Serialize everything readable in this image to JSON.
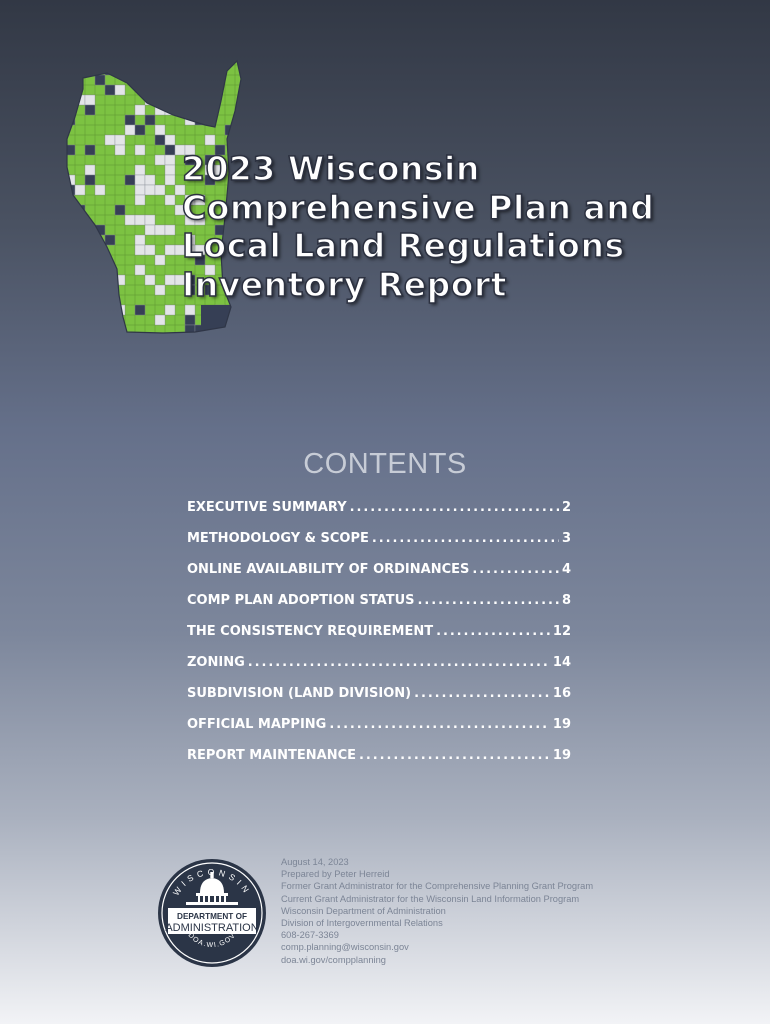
{
  "title_lines": [
    "2023 Wisconsin",
    "Comprehensive Plan and",
    "Local Land Regulations",
    "Inventory Report"
  ],
  "contents_heading": "CONTENTS",
  "toc": [
    {
      "label": "EXECUTIVE SUMMARY",
      "page": "2"
    },
    {
      "label": "METHODOLOGY & SCOPE",
      "page": "3"
    },
    {
      "label": "ONLINE AVAILABILITY OF ORDINANCES",
      "page": "4"
    },
    {
      "label": "COMP PLAN ADOPTION STATUS",
      "page": "8"
    },
    {
      "label": "THE CONSISTENCY REQUIREMENT",
      "page": "12"
    },
    {
      "label": "ZONING",
      "page": "14"
    },
    {
      "label": "SUBDIVISION (LAND DIVISION)",
      "page": "16"
    },
    {
      "label": "OFFICIAL MAPPING",
      "page": "19"
    },
    {
      "label": "REPORT MAINTENANCE",
      "page": "19"
    }
  ],
  "seal": {
    "top_text": "WISCONSIN",
    "line1": "DEPARTMENT OF",
    "line2": "ADMINISTRATION",
    "bottom_text": "DOA.WI.GOV"
  },
  "footer_lines": [
    "August 14, 2023",
    "Prepared by Peter Herreid",
    "Former Grant Administrator for the Comprehensive Planning Grant Program",
    "Current Grant Administrator for the Wisconsin Land Information Program",
    "Wisconsin Department of Administration",
    "Division of Intergovernmental Relations",
    "608-267-3369",
    "comp.planning@wisconsin.gov",
    "doa.wi.gov/compplanning"
  ],
  "colors": {
    "map_green": "#7cc242",
    "map_gray": "#e3e5e8",
    "map_navy": "#363f55",
    "seal_navy": "#2b3547"
  }
}
